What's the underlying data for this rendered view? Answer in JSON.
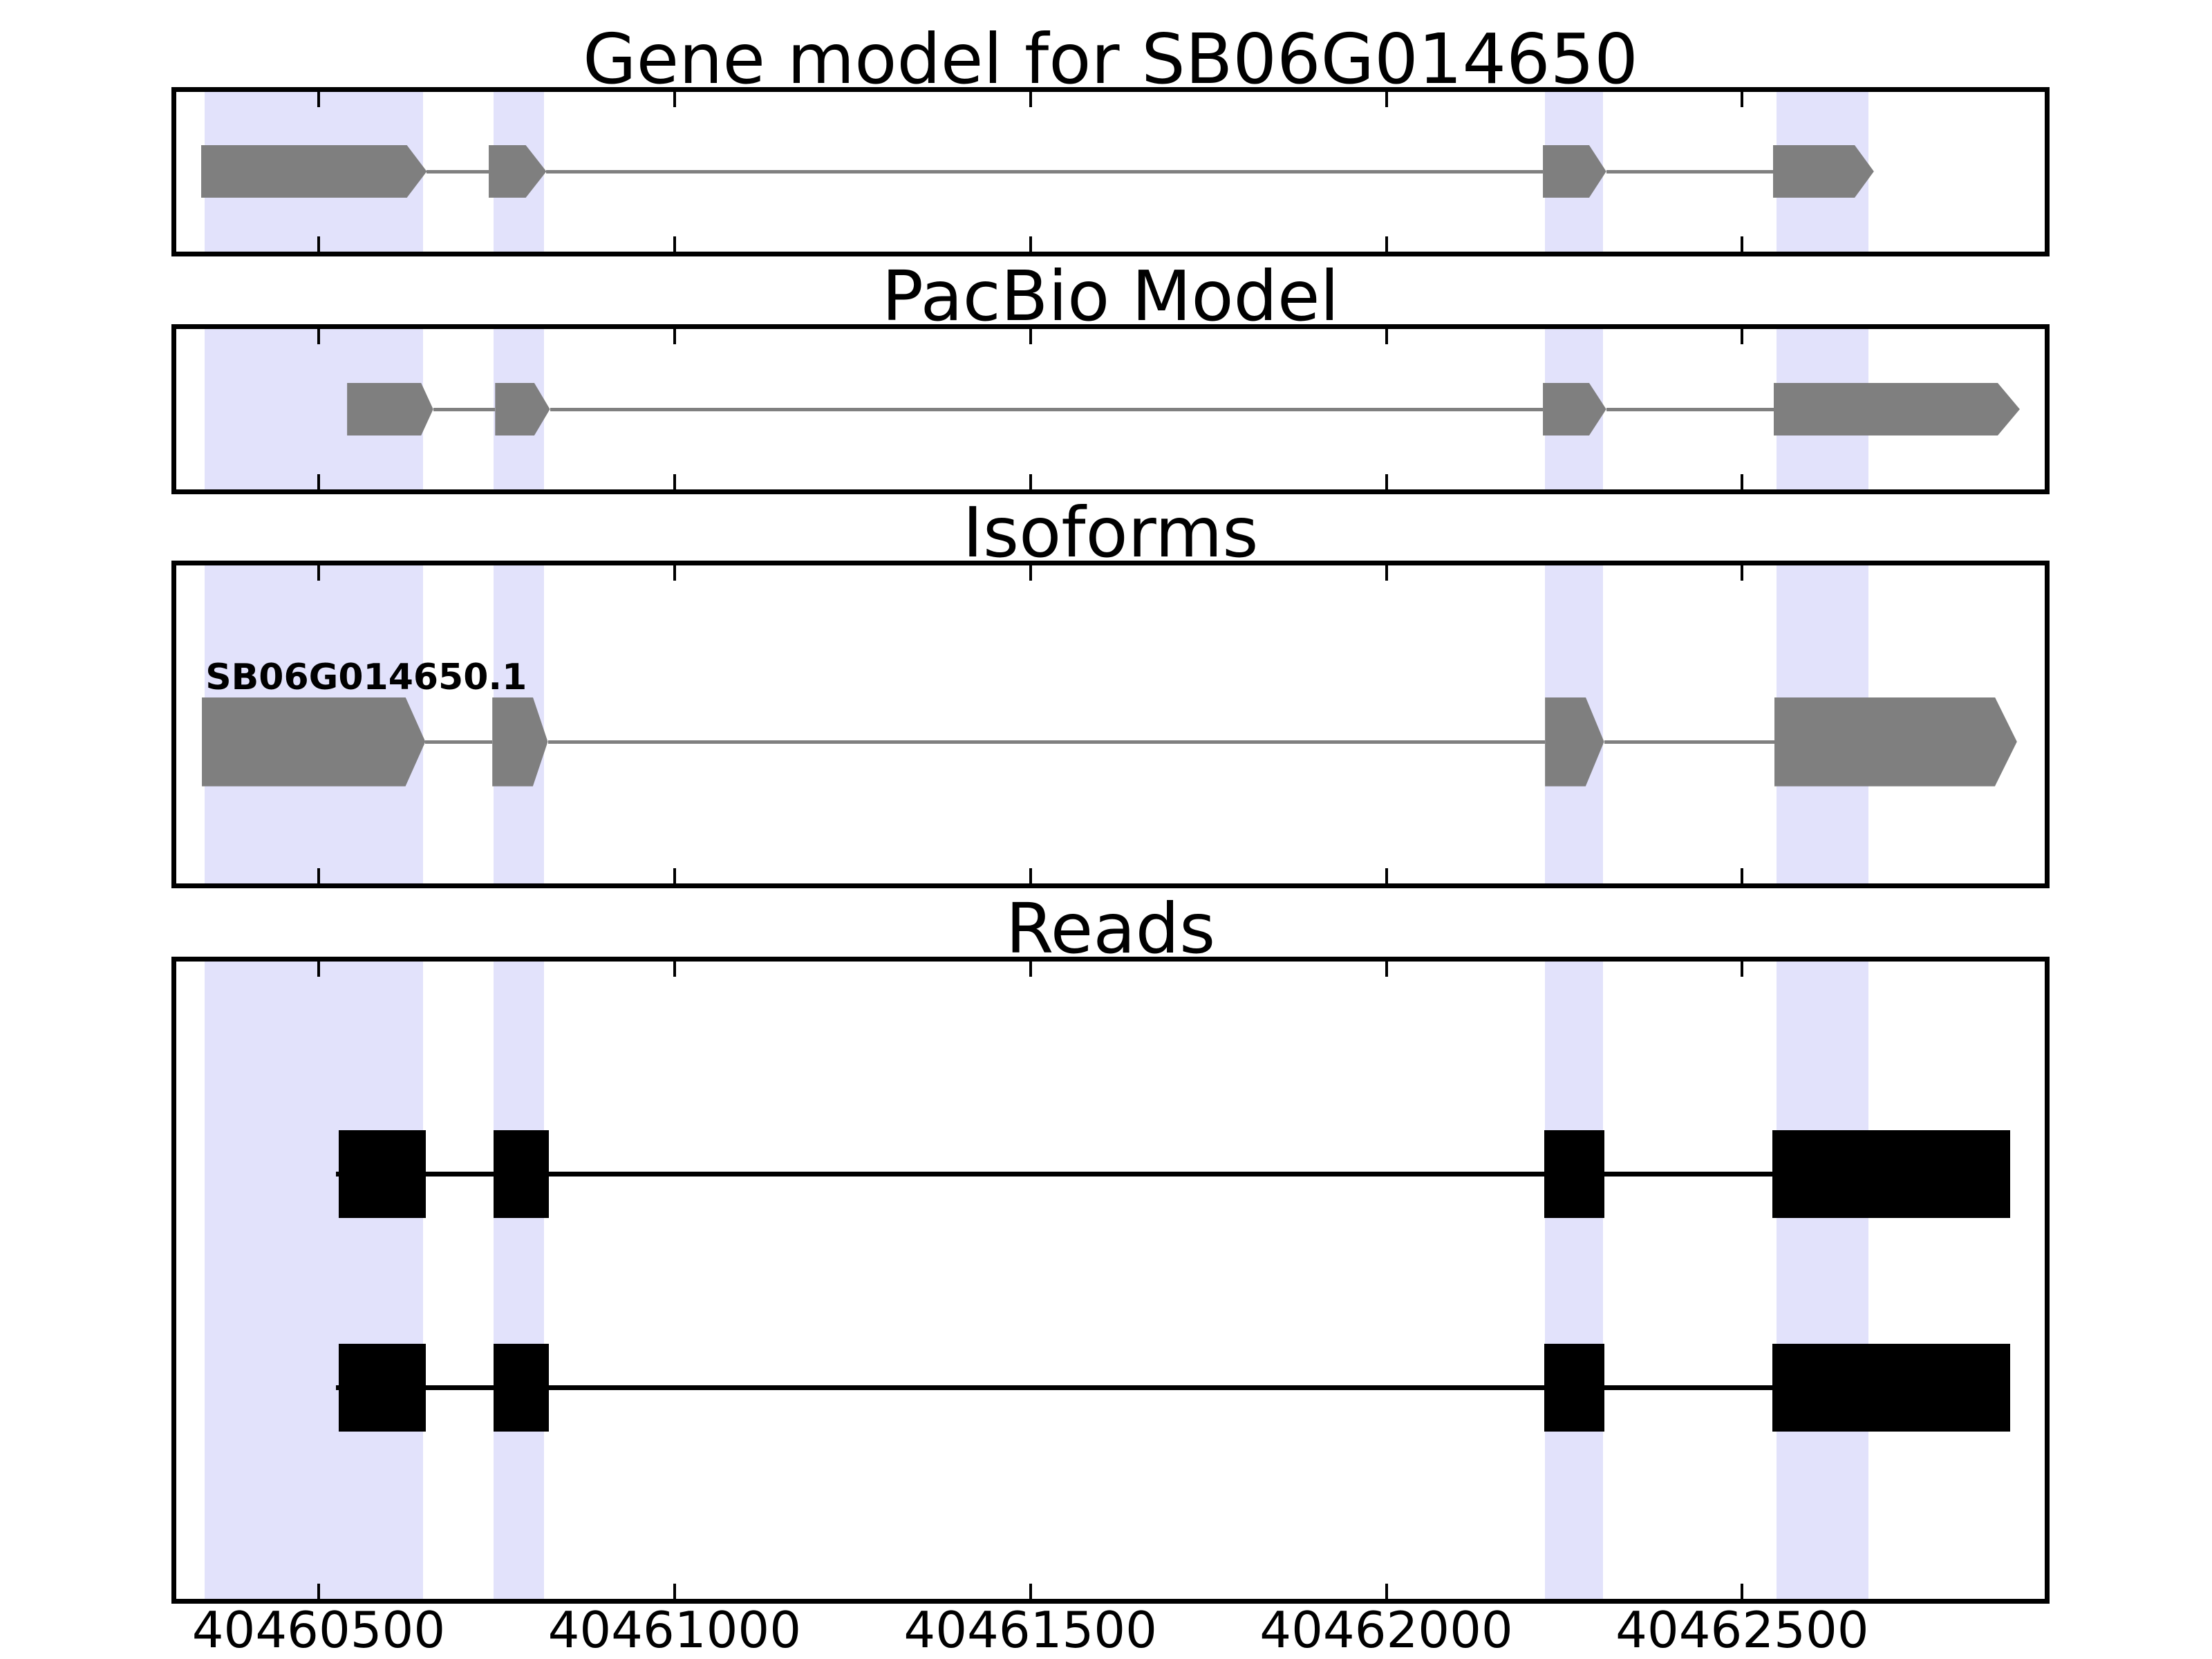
{
  "figure": {
    "colors": {
      "background": "#FFFFFF",
      "axis": "#000000",
      "highlight_band": "#E2E2FB",
      "exon_fill": "#7F7F7F",
      "intron_line": "#808080",
      "read_fill": "#000000",
      "text": "#000000"
    }
  },
  "chart_data": {
    "type": "gene-model-tracks",
    "x_axis": {
      "min": 40460300,
      "max": 40462925,
      "ticks": [
        40460500,
        40461000,
        40461500,
        40462000,
        40462500
      ],
      "tick_labels": [
        "40460500",
        "40461000",
        "40461500",
        "40462000",
        "40462500"
      ]
    },
    "highlight_regions": [
      {
        "start": 40460340,
        "end": 40460647
      },
      {
        "start": 40460746,
        "end": 40460817
      },
      {
        "start": 40462223,
        "end": 40462304
      },
      {
        "start": 40462548,
        "end": 40462677
      }
    ],
    "panels": [
      {
        "id": "gene_model",
        "title": "Gene model for SB06G014650",
        "exons": [
          {
            "start": 40460335,
            "body_end": 40460624,
            "end": 40460652
          },
          {
            "start": 40460739,
            "body_end": 40460791,
            "end": 40460820
          },
          {
            "start": 40462220,
            "body_end": 40462285,
            "end": 40462309
          },
          {
            "start": 40462543,
            "body_end": 40462658,
            "end": 40462685
          }
        ]
      },
      {
        "id": "pacbio_model",
        "title": "PacBio Model",
        "exons": [
          {
            "start": 40460540,
            "body_end": 40460644,
            "end": 40460661
          },
          {
            "start": 40460748,
            "body_end": 40460803,
            "end": 40460825
          },
          {
            "start": 40462220,
            "body_end": 40462285,
            "end": 40462309
          },
          {
            "start": 40462544,
            "body_end": 40462859,
            "end": 40462890
          }
        ]
      },
      {
        "id": "isoforms",
        "title": "Isoforms",
        "isoform_label": "SB06G014650.1",
        "exons": [
          {
            "start": 40460336,
            "body_end": 40460622,
            "end": 40460650
          },
          {
            "start": 40460744,
            "body_end": 40460801,
            "end": 40460822
          },
          {
            "start": 40462223,
            "body_end": 40462280,
            "end": 40462306
          },
          {
            "start": 40462545,
            "body_end": 40462855,
            "end": 40462886
          }
        ]
      },
      {
        "id": "reads",
        "title": "Reads",
        "reads": [
          {
            "line_start": 40460524,
            "blocks": [
              [
                40460528,
                40460651
              ],
              [
                40460746,
                40460823
              ],
              [
                40462222,
                40462306
              ],
              [
                40462542,
                40462876
              ]
            ]
          },
          {
            "line_start": 40460524,
            "blocks": [
              [
                40460528,
                40460651
              ],
              [
                40460746,
                40460823
              ],
              [
                40462222,
                40462306
              ],
              [
                40462542,
                40462876
              ]
            ]
          }
        ]
      }
    ]
  }
}
